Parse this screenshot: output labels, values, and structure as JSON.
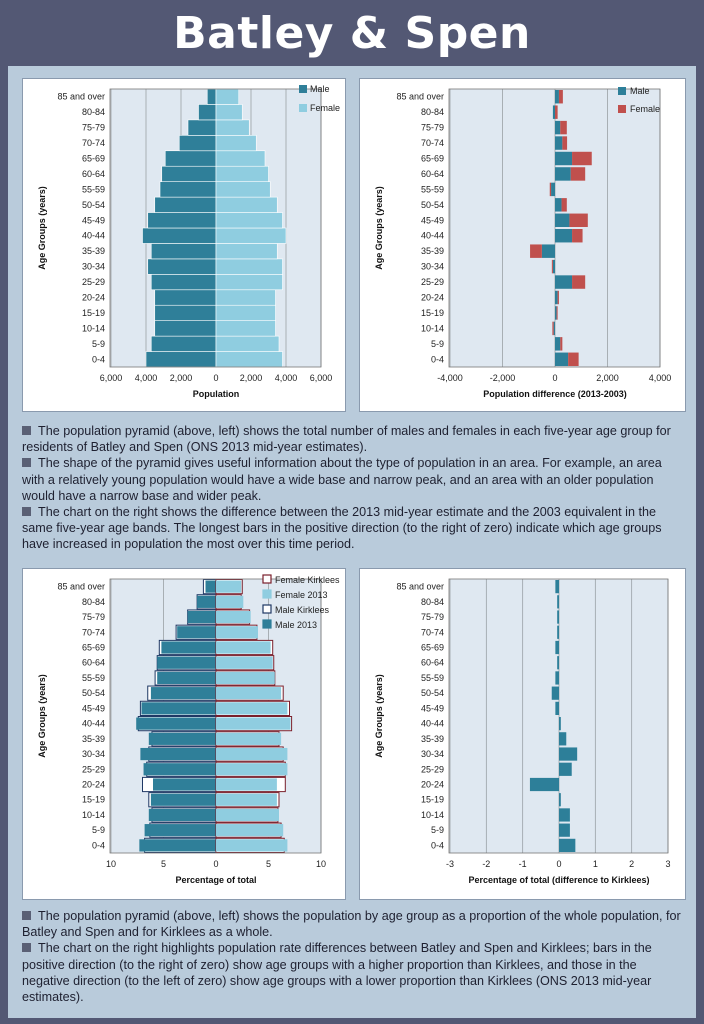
{
  "title": "Batley & Spen",
  "text1": [
    "The population pyramid (above, left) shows the total number of males and females in each five-year age group for residents of Batley and Spen (ONS 2013 mid-year estimates).",
    "The shape of the pyramid gives useful information about the type of population in an area. For example, an area with a relatively young population would have a wide base and narrow peak, and an area with an older population would have a narrow base and wider peak.",
    "The chart on the right shows the difference between the 2013 mid-year estimate and the 2003 equivalent in the same five-year age bands. The longest bars in the positive direction (to the right of zero) indicate which age groups have increased in population the most over this time period."
  ],
  "text2": [
    "The population pyramid (above, left) shows the population by age group as a proportion of the whole population, for Batley and Spen and for Kirklees as a whole.",
    "The chart on the right highlights population rate differences between Batley and Spen and Kirklees; bars in the positive direction (to the right of zero) show age groups with a higher proportion than Kirklees, and those in the negative direction (to the left of zero) show age groups with a lower proportion than Kirklees (ONS 2013 mid-year estimates)."
  ],
  "colors": {
    "male": "#2f7f99",
    "female": "#8fcde0",
    "female_diff": "#c0504d",
    "male_diff": "#2d7f99",
    "bar_border": "#7a1f2b",
    "navy": "#1f3864"
  },
  "chart_data": [
    {
      "type": "bar",
      "subtype": "population-pyramid",
      "categories": [
        "0-4",
        "5-9",
        "10-14",
        "15-19",
        "20-24",
        "25-29",
        "30-34",
        "35-39",
        "40-44",
        "45-49",
        "50-54",
        "55-59",
        "60-64",
        "65-69",
        "70-74",
        "75-79",
        "80-84",
        "85 and over"
      ],
      "series": [
        {
          "name": "Male",
          "values": [
            4000,
            3700,
            3500,
            3500,
            3500,
            3700,
            3900,
            3700,
            4200,
            3900,
            3500,
            3200,
            3100,
            2900,
            2100,
            1600,
            1000,
            500
          ]
        },
        {
          "name": "Female",
          "values": [
            3800,
            3600,
            3400,
            3400,
            3400,
            3800,
            3800,
            3500,
            4000,
            3800,
            3500,
            3100,
            3000,
            2800,
            2300,
            1900,
            1500,
            1300
          ]
        }
      ],
      "ylabel": "Age Groups (years)",
      "xlabel": "Population",
      "xlim": [
        -6000,
        6000
      ],
      "xticks": [
        "6,000",
        "4,000",
        "2,000",
        "0",
        "2,000",
        "4,000",
        "6,000"
      ],
      "legend": "top-right",
      "grid": true
    },
    {
      "type": "bar",
      "subtype": "stacked-difference",
      "categories": [
        "0-4",
        "5-9",
        "10-14",
        "15-19",
        "20-24",
        "25-29",
        "30-34",
        "35-39",
        "40-44",
        "45-49",
        "50-54",
        "55-59",
        "60-64",
        "65-69",
        "70-74",
        "75-79",
        "80-84",
        "85 and over"
      ],
      "series": [
        {
          "name": "Male",
          "values": [
            500,
            200,
            -50,
            60,
            100,
            650,
            -80,
            -500,
            650,
            550,
            250,
            -150,
            600,
            650,
            280,
            200,
            -80,
            150
          ]
        },
        {
          "name": "Female",
          "values": [
            400,
            80,
            -50,
            40,
            50,
            500,
            -40,
            -450,
            400,
            700,
            200,
            -50,
            550,
            750,
            180,
            250,
            100,
            150
          ]
        }
      ],
      "ylabel": "Age Groups (years)",
      "xlabel": "Population difference (2013-2003)",
      "xlim": [
        -4000,
        4000
      ],
      "xticks": [
        "-4,000",
        "-2,000",
        "0",
        "2,000",
        "4,000"
      ],
      "legend": "top-right",
      "grid": true
    },
    {
      "type": "bar",
      "subtype": "population-pyramid-percent",
      "categories": [
        "0-4",
        "5-9",
        "10-14",
        "15-19",
        "20-24",
        "25-29",
        "30-34",
        "35-39",
        "40-44",
        "45-49",
        "50-54",
        "55-59",
        "60-64",
        "65-69",
        "70-74",
        "75-79",
        "80-84",
        "85 and over"
      ],
      "series": [
        {
          "name": "Female Kirklees",
          "values": [
            6.5,
            6.2,
            5.9,
            6.0,
            6.6,
            6.6,
            6.4,
            6.0,
            7.2,
            7.0,
            6.4,
            5.6,
            5.5,
            5.4,
            3.9,
            3.2,
            2.4,
            2.5
          ]
        },
        {
          "name": "Female 2013",
          "values": [
            6.8,
            6.4,
            6.0,
            5.8,
            5.8,
            6.8,
            6.8,
            6.2,
            7.1,
            6.8,
            6.2,
            5.6,
            5.4,
            5.2,
            4.0,
            3.3,
            2.6,
            2.4
          ]
        },
        {
          "name": "Male Kirklees",
          "values": [
            6.8,
            6.3,
            6.1,
            6.4,
            7.0,
            6.6,
            6.4,
            6.1,
            7.4,
            7.2,
            6.5,
            5.8,
            5.6,
            5.4,
            3.8,
            2.7,
            1.8,
            1.2
          ]
        },
        {
          "name": "Male 2013",
          "values": [
            7.3,
            6.8,
            6.4,
            6.2,
            6.0,
            6.9,
            7.2,
            6.4,
            7.6,
            7.1,
            6.2,
            5.6,
            5.6,
            5.2,
            3.7,
            2.7,
            1.8,
            1.0
          ]
        }
      ],
      "ylabel": "Age Groups (years)",
      "xlabel": "Percentage of total",
      "xlim": [
        -10,
        10
      ],
      "xticks": [
        "10",
        "5",
        "0",
        "5",
        "10"
      ],
      "legend": "top-right",
      "grid": true
    },
    {
      "type": "bar",
      "subtype": "difference",
      "categories": [
        "0-4",
        "5-9",
        "10-14",
        "15-19",
        "20-24",
        "25-29",
        "30-34",
        "35-39",
        "40-44",
        "45-49",
        "50-54",
        "55-59",
        "60-64",
        "65-69",
        "70-74",
        "75-79",
        "80-84",
        "85 and over"
      ],
      "values": [
        0.45,
        0.3,
        0.3,
        0.05,
        -0.8,
        0.35,
        0.5,
        0.2,
        0.05,
        -0.1,
        -0.2,
        -0.1,
        -0.05,
        -0.1,
        -0.05,
        -0.05,
        -0.05,
        -0.1
      ],
      "ylabel": "Age Groups (years)",
      "xlabel": "Percentage of total (difference  to Kirklees)",
      "xlim": [
        -3,
        3
      ],
      "xticks": [
        "-3",
        "-2",
        "-1",
        "0",
        "1",
        "2",
        "3"
      ],
      "grid": true
    }
  ]
}
